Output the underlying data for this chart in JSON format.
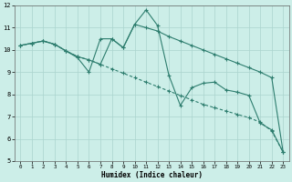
{
  "xlabel": "Humidex (Indice chaleur)",
  "bg_color": "#cceee8",
  "line_color": "#2d7d6e",
  "grid_color": "#aad4ce",
  "ylim": [
    5,
    12
  ],
  "xlim": [
    -0.5,
    23.5
  ],
  "yticks": [
    5,
    6,
    7,
    8,
    9,
    10,
    11,
    12
  ],
  "xticks": [
    0,
    1,
    2,
    3,
    4,
    5,
    6,
    7,
    8,
    9,
    10,
    11,
    12,
    13,
    14,
    15,
    16,
    17,
    18,
    19,
    20,
    21,
    22,
    23
  ],
  "line1_x": [
    0,
    1,
    2,
    3,
    4,
    5,
    6,
    7,
    8,
    9,
    10,
    11,
    12,
    13,
    14,
    15,
    16,
    17,
    18,
    19,
    20,
    21,
    22,
    23
  ],
  "line1_y": [
    10.2,
    10.3,
    10.4,
    10.25,
    9.95,
    9.65,
    9.0,
    10.5,
    10.5,
    10.1,
    11.15,
    11.8,
    11.1,
    8.85,
    7.5,
    8.3,
    8.5,
    8.55,
    8.2,
    8.1,
    7.95,
    6.7,
    6.4,
    5.4
  ],
  "line2_x": [
    0,
    1,
    2,
    3,
    4,
    5,
    6,
    7,
    8,
    9,
    10,
    11,
    12,
    13,
    14,
    15,
    16,
    17,
    18,
    19,
    20,
    21,
    22,
    23
  ],
  "line2_y": [
    10.2,
    10.3,
    10.4,
    10.25,
    9.95,
    9.7,
    9.55,
    9.35,
    9.15,
    8.95,
    8.75,
    8.55,
    8.35,
    8.15,
    7.95,
    7.75,
    7.55,
    7.4,
    7.25,
    7.1,
    6.95,
    6.75,
    6.35,
    5.4
  ],
  "line3_x": [
    0,
    1,
    2,
    3,
    4,
    5,
    6,
    7,
    8,
    9,
    10,
    11,
    12,
    13,
    14,
    15,
    16,
    17,
    18,
    19,
    20,
    21,
    22,
    23
  ],
  "line3_y": [
    10.2,
    10.3,
    10.4,
    10.25,
    9.95,
    9.7,
    9.55,
    9.35,
    10.5,
    10.1,
    11.15,
    11.0,
    10.85,
    10.6,
    10.4,
    10.2,
    10.0,
    9.8,
    9.6,
    9.4,
    9.2,
    9.0,
    8.75,
    5.4
  ]
}
